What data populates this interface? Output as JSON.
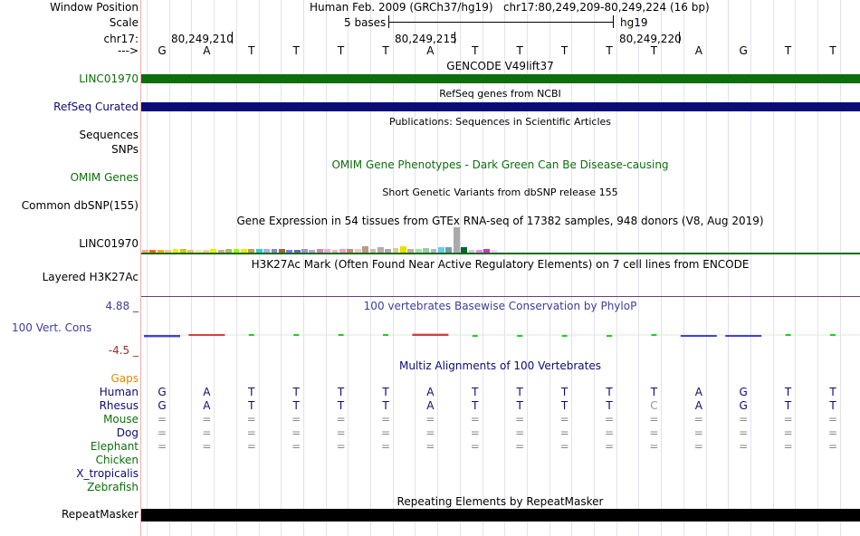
{
  "header": {
    "window_position_label": "Window Position",
    "window_position": "Human Feb. 2009 (GRCh37/hg19)   chr17:80,249,209-80,249,224 (16 bp)",
    "scale_label": "Scale",
    "scale_value": "5 bases",
    "scale_assembly": "hg19",
    "chrom_label": "chr17:",
    "ruler_positions": [
      "80,249,210",
      "80,249,215",
      "80,249,220"
    ],
    "strand_label": "--->"
  },
  "sequence": [
    "G",
    "A",
    "T",
    "T",
    "T",
    "T",
    "A",
    "T",
    "T",
    "T",
    "T",
    "T",
    "A",
    "G",
    "T",
    "T"
  ],
  "tracks": {
    "gencode": {
      "title": "GENCODE V49lift37",
      "label": "LINC01970",
      "color": "#0c6e0c"
    },
    "refseq": {
      "title": "RefSeq genes from NCBI",
      "label": "RefSeq Curated",
      "color": "#0c0c78"
    },
    "publications": {
      "title": "Publications: Sequences in Scientific Articles",
      "label1": "Sequences",
      "label2": "SNPs"
    },
    "omim": {
      "title": "OMIM Gene Phenotypes - Dark Green Can Be Disease-causing",
      "label": "OMIM Genes",
      "color": "#0c6e0c"
    },
    "dbsnp": {
      "title": "Short Genetic Variants from dbSNP release 155",
      "label": "Common dbSNP(155)"
    },
    "gtex": {
      "title": "Gene Expression in 54 tissues from GTEx RNA-seq of 17382 samples, 948 donors (V8, Aug 2019)",
      "label": "LINC01970",
      "bars": [
        {
          "value": 0.12,
          "color": "#FFAA80"
        },
        {
          "value": 0.12,
          "color": "#FF6600"
        },
        {
          "value": 0.12,
          "color": "#FFAA00"
        },
        {
          "value": 0.12,
          "color": "#FFCC66"
        },
        {
          "value": 0.14,
          "color": "#EEEE00"
        },
        {
          "value": 0.14,
          "color": "#CCCC00"
        },
        {
          "value": 0.12,
          "color": "#EEBB77"
        },
        {
          "value": 0.12,
          "color": "#EEEE99"
        },
        {
          "value": 0.12,
          "color": "#FFCC99"
        },
        {
          "value": 0.14,
          "color": "#EEEE00"
        },
        {
          "value": 0.12,
          "color": "#CCAA99"
        },
        {
          "value": 0.14,
          "color": "#AABB66"
        },
        {
          "value": 0.14,
          "color": "#99FF00"
        },
        {
          "value": 0.16,
          "color": "#EEEE00"
        },
        {
          "value": 0.14,
          "color": "#CC9955"
        },
        {
          "value": 0.16,
          "color": "#33CCCC"
        },
        {
          "value": 0.14,
          "color": "#AAAAFF"
        },
        {
          "value": 0.14,
          "color": "#8888CC"
        },
        {
          "value": 0.14,
          "color": "#996633"
        },
        {
          "value": 0.12,
          "color": "#7777FF"
        },
        {
          "value": 0.12,
          "color": "#6666AA"
        },
        {
          "value": 0.14,
          "color": "#9999CC"
        },
        {
          "value": 0.12,
          "color": "#AAAACC"
        },
        {
          "value": 0.14,
          "color": "#CC88BB"
        },
        {
          "value": 0.14,
          "color": "#EEAADD"
        },
        {
          "value": 0.12,
          "color": "#DDBBAA"
        },
        {
          "value": 0.14,
          "color": "#FF99CC"
        },
        {
          "value": 0.16,
          "color": "#CC8877"
        },
        {
          "value": 0.14,
          "color": "#EECCBB"
        },
        {
          "value": 0.24,
          "color": "#BB9988"
        },
        {
          "value": 0.16,
          "color": "#CCBBAA"
        },
        {
          "value": 0.2,
          "color": "#BBAAAA"
        },
        {
          "value": 0.16,
          "color": "#AAAAAA"
        },
        {
          "value": 0.18,
          "color": "#DDCC88"
        },
        {
          "value": 0.26,
          "color": "#EEDD00"
        },
        {
          "value": 0.16,
          "color": "#CCAA99"
        },
        {
          "value": 0.16,
          "color": "#AADDAA"
        },
        {
          "value": 0.18,
          "color": "#99CCAA"
        },
        {
          "value": 0.14,
          "color": "#AABBCC"
        },
        {
          "value": 0.2,
          "color": "#66CCEE"
        },
        {
          "value": 0.22,
          "color": "#7799AA"
        },
        {
          "value": 1.0,
          "color": "#AAAAAA"
        },
        {
          "value": 0.22,
          "color": "#006633"
        },
        {
          "value": 0.12,
          "color": "#CCCCCC"
        },
        {
          "value": 0.12,
          "color": "#EE88EE"
        },
        {
          "value": 0.14,
          "color": "#CC33CC"
        },
        {
          "value": 0.12,
          "color": "#FFCCFF"
        }
      ]
    },
    "h3k27ac": {
      "title": "H3K27Ac Mark (Often Found Near Active Regulatory Elements) on 7 cell lines from ENCODE",
      "label": "Layered H3K27Ac",
      "color": "#6a3d7a"
    },
    "conservation": {
      "title": "100 vertebrates Basewise Conservation by PhyloP",
      "label": "100 Vert. Cons",
      "ymax": "4.88 _",
      "ymin": "-4.5 _",
      "color": "#3d3d9c",
      "scores": [
        -0.4,
        0.3,
        0.1,
        0.1,
        0.1,
        0.1,
        0.4,
        -0.1,
        -0.1,
        -0.1,
        -0.2,
        0.2,
        -0.3,
        -0.3,
        0.1,
        0.2
      ]
    },
    "multiz": {
      "title": "Multiz Alignments of 100 Vertebrates",
      "gaps_label": "Gaps",
      "species": [
        {
          "name": "Human",
          "color": "#0c0c78",
          "bases": [
            "G",
            "A",
            "T",
            "T",
            "T",
            "T",
            "A",
            "T",
            "T",
            "T",
            "T",
            "T",
            "A",
            "G",
            "T",
            "T"
          ]
        },
        {
          "name": "Rhesus",
          "color": "#0c0c78",
          "bases": [
            "G",
            "A",
            "T",
            "T",
            "T",
            "T",
            "A",
            "T",
            "T",
            "T",
            "T",
            "C",
            "A",
            "G",
            "T",
            "T"
          ]
        },
        {
          "name": "Mouse",
          "color": "#0c6e0c",
          "bases": [
            "=",
            "=",
            "=",
            "=",
            "=",
            "=",
            "=",
            "=",
            "=",
            "=",
            "=",
            "=",
            "=",
            "=",
            "=",
            "="
          ]
        },
        {
          "name": "Dog",
          "color": "#0c0c78",
          "bases": [
            "=",
            "=",
            "=",
            "=",
            "=",
            "=",
            "=",
            "=",
            "=",
            "=",
            "=",
            "=",
            "=",
            "=",
            "=",
            "="
          ]
        },
        {
          "name": "Elephant",
          "color": "#0c6e0c",
          "bases": [
            "=",
            "=",
            "=",
            "=",
            "=",
            "=",
            "=",
            "=",
            "=",
            "=",
            "=",
            "=",
            "=",
            "=",
            "=",
            "="
          ]
        },
        {
          "name": "Chicken",
          "color": "#0c6e0c",
          "bases": []
        },
        {
          "name": "X_tropicalis",
          "color": "#0c0c78",
          "bases": []
        },
        {
          "name": "Zebrafish",
          "color": "#0c6e0c",
          "bases": []
        }
      ]
    },
    "repeatmasker": {
      "title": "Repeating Elements by RepeatMasker",
      "label": "RepeatMasker"
    }
  },
  "colors": {
    "gaps_label": "#e08a00",
    "title_blue": "#3d3d9c",
    "title_green": "#0c6e0c"
  }
}
